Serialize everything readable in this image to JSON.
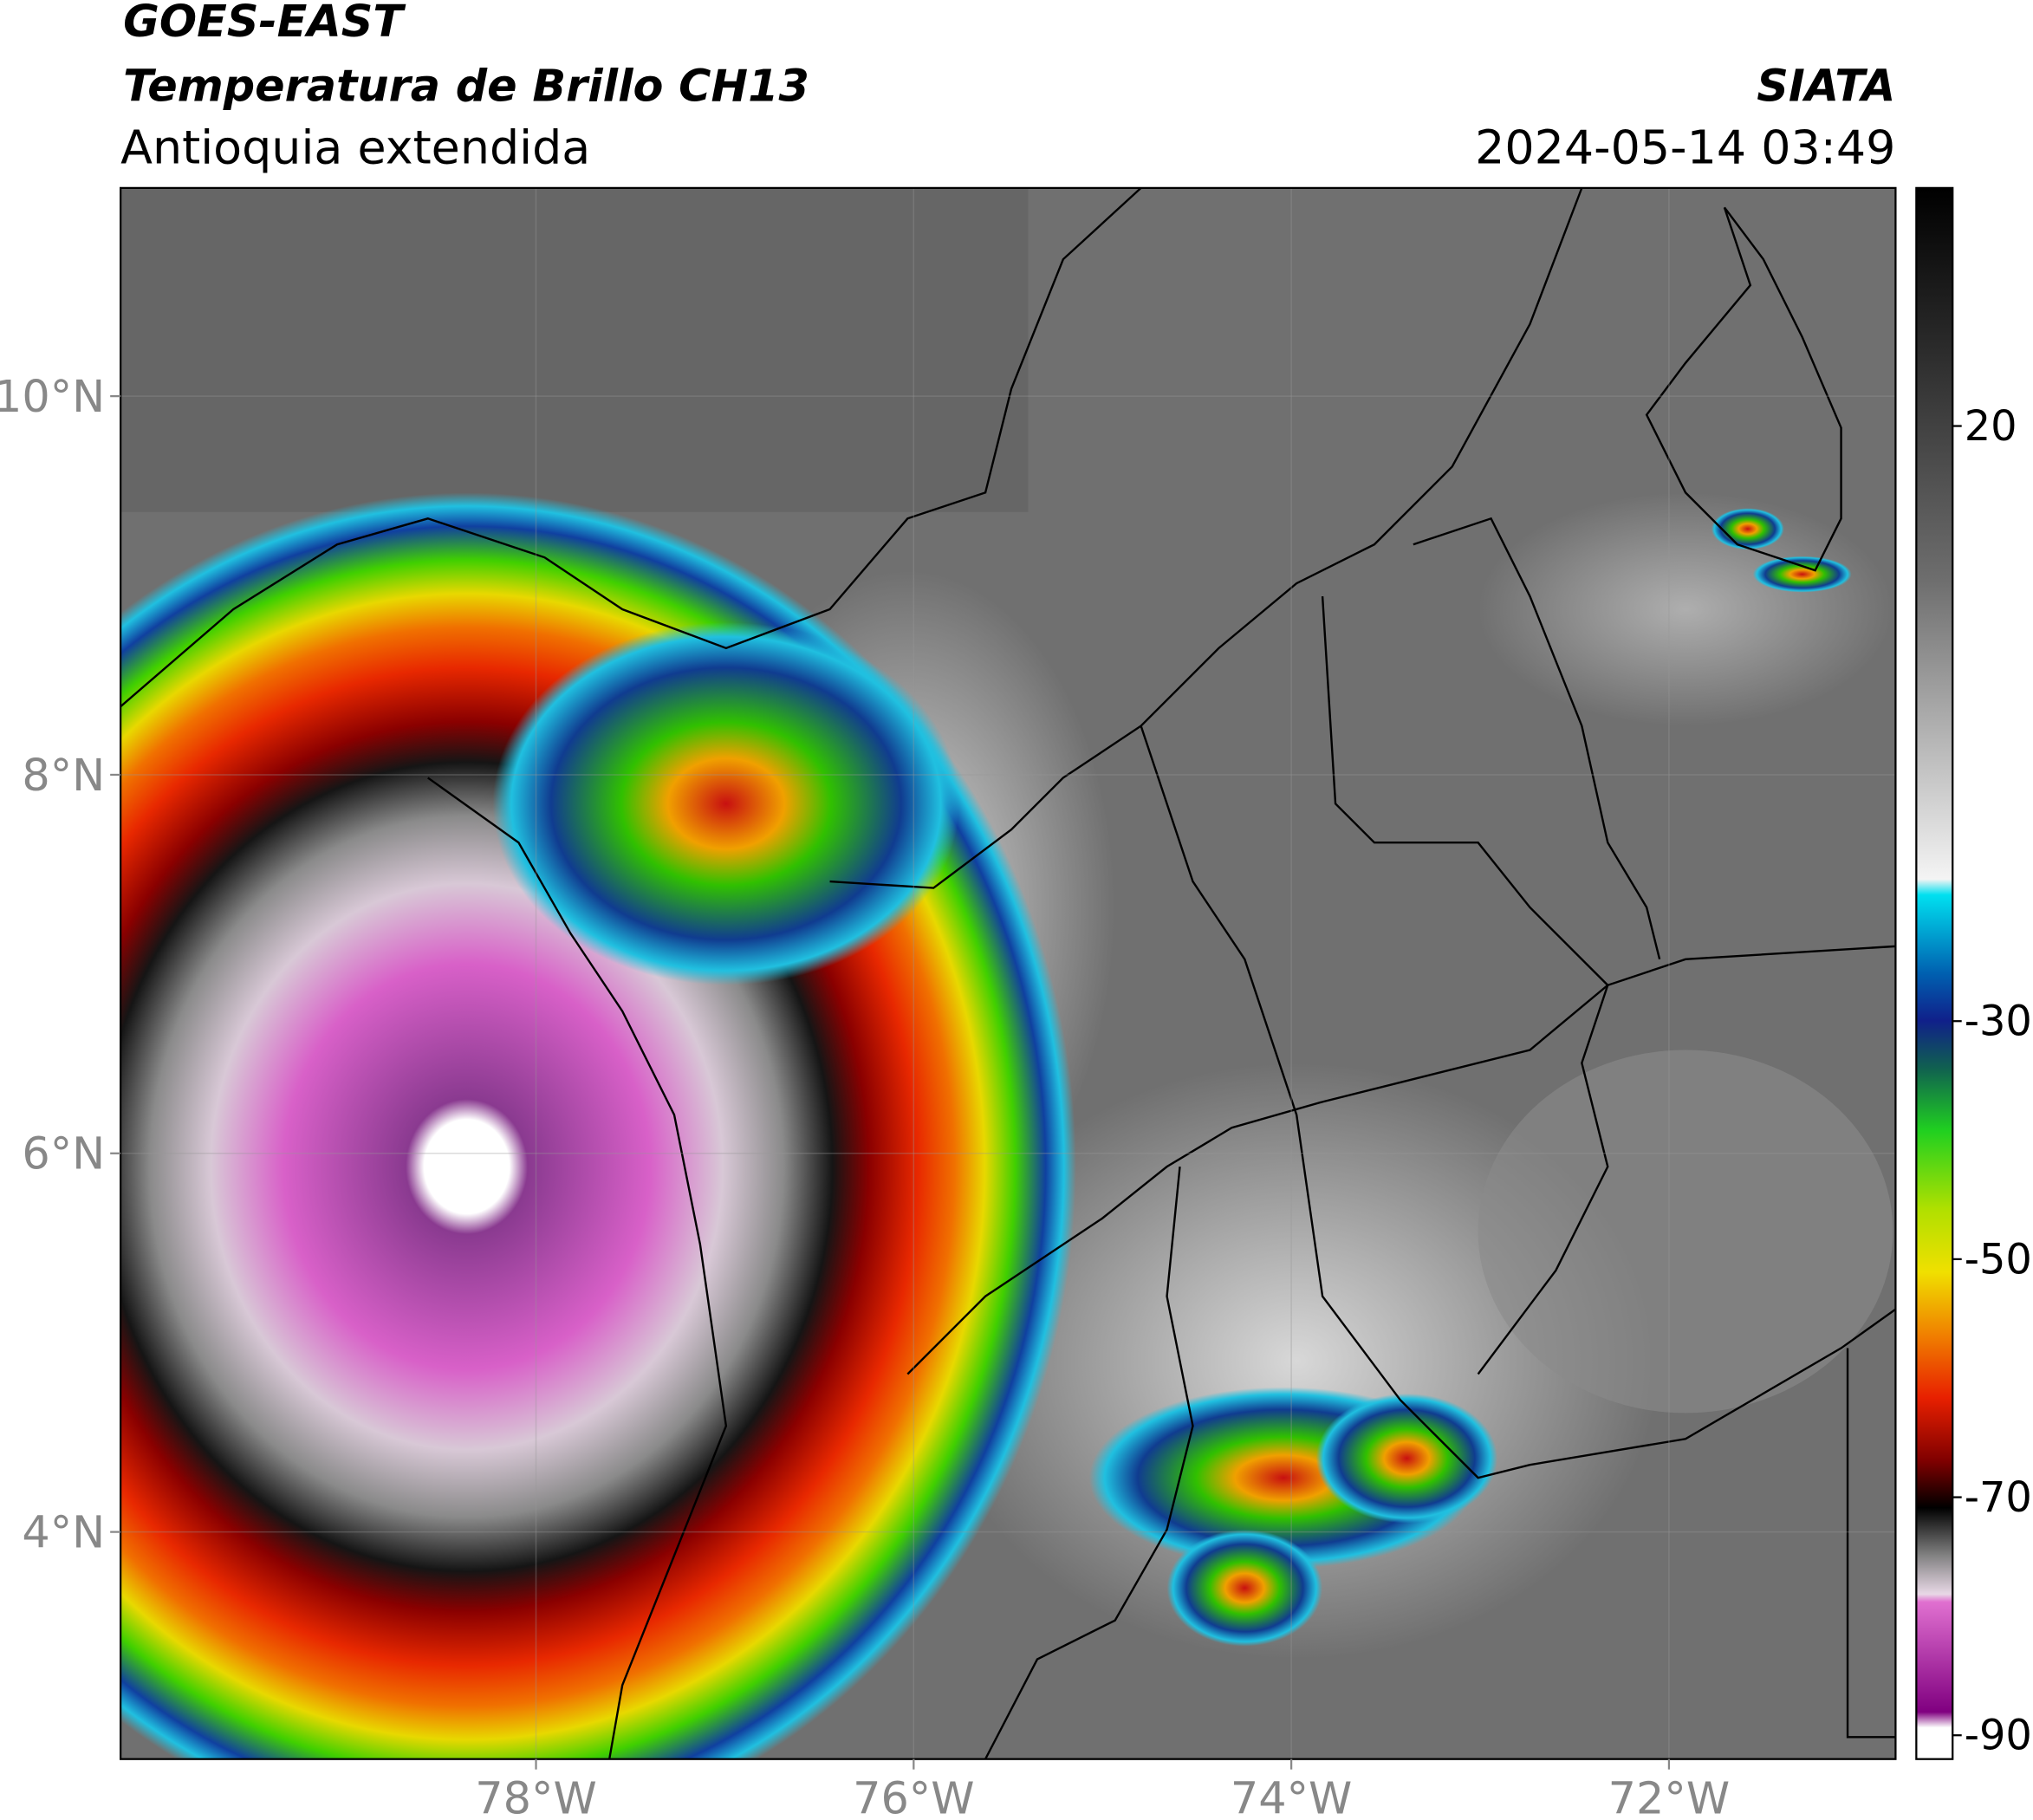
{
  "header": {
    "line1": "GOES-EAST",
    "line2": "Temperatura de Brillo CH13",
    "line3": "Antioquia extendida",
    "source": "SIATA",
    "datetime": "2024-05-14 03:49"
  },
  "map": {
    "xlim": [
      -80.2,
      -70.8
    ],
    "ylim": [
      2.8,
      11.1
    ],
    "xticks": [
      {
        "value": -78,
        "label": "78°W"
      },
      {
        "value": -76,
        "label": "76°W"
      },
      {
        "value": -74,
        "label": "74°W"
      },
      {
        "value": -72,
        "label": "72°W"
      }
    ],
    "yticks": [
      {
        "value": 4,
        "label": "4°N"
      },
      {
        "value": 6,
        "label": "6°N"
      },
      {
        "value": 8,
        "label": "8°N"
      },
      {
        "value": 10,
        "label": "10°N"
      }
    ]
  },
  "colorbar": {
    "lim": [
      -92,
      40
    ],
    "ticks": [
      20,
      -30,
      -50,
      -70,
      -90
    ]
  }
}
